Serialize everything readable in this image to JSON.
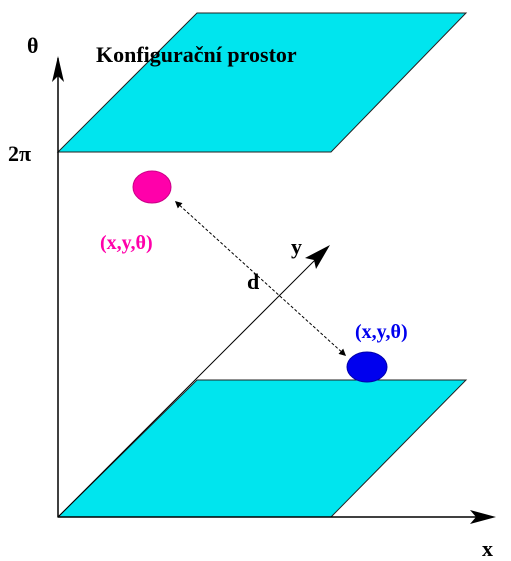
{
  "title": "Konfigurační prostor",
  "axes": {
    "theta": "θ",
    "x": "x",
    "y": "y",
    "two_pi": "2π"
  },
  "points": {
    "start": {
      "label": "(x,y,θ)",
      "color": "#ff00aa"
    },
    "goal": {
      "label": "(x,y,θ)",
      "color": "#0000ee"
    }
  },
  "distance_label": "d",
  "colors": {
    "plane_fill": "#00e5ee",
    "plane_stroke": "#222222",
    "axis": "#000000",
    "background": "#ffffff"
  }
}
